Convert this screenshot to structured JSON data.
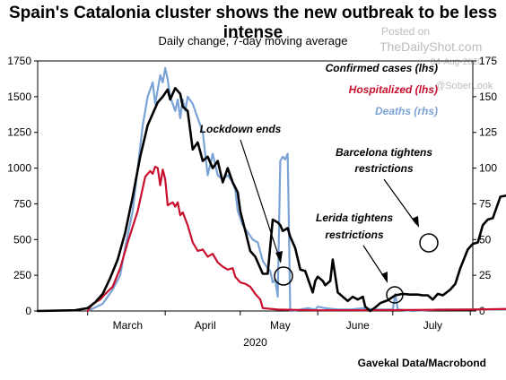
{
  "title": "Spain's Catalonia cluster shows the new outbreak to be less intense",
  "subtitle": "Daily change, 7-day moving average",
  "watermark": {
    "posted_on": "Posted on",
    "site": "TheDailyShot.com",
    "date": "04-Aug-2020",
    "handle": "@SoberLook"
  },
  "source": "Gavekal Data/Macrobond",
  "colors": {
    "confirmed": "#000000",
    "hospitalized": "#c8102e",
    "deaths": "#7ba3d6"
  },
  "chart_data": {
    "type": "line",
    "xlabel": "2020",
    "x_tick_labels": [
      "March",
      "April",
      "May",
      "June",
      "July"
    ],
    "x_tick_days": [
      76,
      107,
      137,
      168,
      198
    ],
    "x_range_day_of_year": [
      40,
      214
    ],
    "y_left": {
      "range": [
        0,
        1750
      ],
      "ticks": [
        "0",
        "250",
        "500",
        "750",
        "1000",
        "1250",
        "1500",
        "1750"
      ]
    },
    "y_right": {
      "range": [
        0,
        175
      ],
      "ticks": [
        "0",
        "25",
        "50",
        "75",
        "100",
        "125",
        "150",
        "175"
      ]
    },
    "series": [
      {
        "name": "Confirmed cases (lhs)",
        "axis": "left",
        "color": "#000000",
        "points": [
          [
            40,
            0
          ],
          [
            55,
            5
          ],
          [
            60,
            20
          ],
          [
            63,
            60
          ],
          [
            66,
            120
          ],
          [
            69,
            230
          ],
          [
            72,
            360
          ],
          [
            75,
            550
          ],
          [
            78,
            800
          ],
          [
            81,
            1080
          ],
          [
            84,
            1300
          ],
          [
            86,
            1380
          ],
          [
            88,
            1460
          ],
          [
            90,
            1500
          ],
          [
            92,
            1550
          ],
          [
            93,
            1480
          ],
          [
            95,
            1560
          ],
          [
            97,
            1520
          ],
          [
            98,
            1430
          ],
          [
            100,
            1400
          ],
          [
            102,
            1130
          ],
          [
            104,
            1180
          ],
          [
            106,
            1050
          ],
          [
            108,
            1080
          ],
          [
            110,
            1000
          ],
          [
            112,
            1050
          ],
          [
            114,
            900
          ],
          [
            116,
            1000
          ],
          [
            118,
            900
          ],
          [
            120,
            830
          ],
          [
            121,
            700
          ],
          [
            123,
            560
          ],
          [
            125,
            420
          ],
          [
            127,
            380
          ],
          [
            130,
            260
          ],
          [
            132,
            260
          ],
          [
            134,
            640
          ],
          [
            136,
            620
          ],
          [
            137,
            600
          ],
          [
            138,
            560
          ],
          [
            140,
            580
          ],
          [
            141,
            520
          ],
          [
            143,
            440
          ],
          [
            145,
            290
          ],
          [
            147,
            280
          ],
          [
            149,
            180
          ],
          [
            150,
            130
          ],
          [
            151,
            210
          ],
          [
            152,
            240
          ],
          [
            154,
            210
          ],
          [
            155,
            180
          ],
          [
            157,
            210
          ],
          [
            158,
            360
          ],
          [
            160,
            130
          ],
          [
            162,
            100
          ],
          [
            164,
            70
          ],
          [
            166,
            100
          ],
          [
            168,
            80
          ],
          [
            170,
            100
          ],
          [
            171,
            30
          ],
          [
            173,
            0
          ],
          [
            175,
            25
          ],
          [
            177,
            55
          ],
          [
            180,
            75
          ],
          [
            183,
            110
          ],
          [
            186,
            120
          ],
          [
            189,
            115
          ],
          [
            192,
            115
          ],
          [
            194,
            110
          ],
          [
            196,
            110
          ],
          [
            198,
            80
          ],
          [
            200,
            120
          ],
          [
            202,
            110
          ],
          [
            205,
            150
          ],
          [
            207,
            190
          ],
          [
            209,
            300
          ],
          [
            212,
            430
          ],
          [
            214,
            470
          ],
          [
            216,
            480
          ],
          [
            218,
            600
          ],
          [
            220,
            640
          ],
          [
            222,
            650
          ],
          [
            225,
            800
          ],
          [
            228,
            810
          ],
          [
            231,
            880
          ],
          [
            234,
            980
          ],
          [
            236,
            920
          ]
        ]
      },
      {
        "name": "Hospitalized (lhs)",
        "axis": "left",
        "color": "#c8102e",
        "points": [
          [
            60,
            0
          ],
          [
            62,
            50
          ],
          [
            65,
            80
          ],
          [
            67,
            120
          ],
          [
            70,
            170
          ],
          [
            73,
            300
          ],
          [
            76,
            480
          ],
          [
            80,
            700
          ],
          [
            83,
            940
          ],
          [
            85,
            980
          ],
          [
            86,
            960
          ],
          [
            87,
            1010
          ],
          [
            88,
            1000
          ],
          [
            89,
            880
          ],
          [
            90,
            990
          ],
          [
            91,
            920
          ],
          [
            92,
            740
          ],
          [
            94,
            760
          ],
          [
            95,
            730
          ],
          [
            96,
            760
          ],
          [
            97,
            670
          ],
          [
            98,
            690
          ],
          [
            100,
            600
          ],
          [
            102,
            480
          ],
          [
            104,
            420
          ],
          [
            106,
            430
          ],
          [
            108,
            380
          ],
          [
            110,
            400
          ],
          [
            112,
            340
          ],
          [
            114,
            310
          ],
          [
            116,
            290
          ],
          [
            118,
            300
          ],
          [
            119,
            240
          ],
          [
            121,
            200
          ],
          [
            123,
            190
          ],
          [
            125,
            170
          ],
          [
            127,
            120
          ],
          [
            129,
            80
          ],
          [
            130,
            20
          ],
          [
            136,
            10
          ],
          [
            150,
            5
          ],
          [
            170,
            5
          ],
          [
            214,
            10
          ],
          [
            230,
            15
          ],
          [
            236,
            15
          ]
        ]
      },
      {
        "name": "Deaths (rhs)",
        "axis": "right",
        "color": "#7ba3d6",
        "points": [
          [
            60,
            0
          ],
          [
            66,
            5
          ],
          [
            70,
            15
          ],
          [
            73,
            25
          ],
          [
            75,
            45
          ],
          [
            78,
            70
          ],
          [
            80,
            100
          ],
          [
            82,
            130
          ],
          [
            84,
            150
          ],
          [
            86,
            160
          ],
          [
            87,
            145
          ],
          [
            89,
            165
          ],
          [
            90,
            160
          ],
          [
            91,
            170
          ],
          [
            92,
            162
          ],
          [
            93,
            150
          ],
          [
            95,
            140
          ],
          [
            96,
            148
          ],
          [
            97,
            135
          ],
          [
            98,
            148
          ],
          [
            99,
            140
          ],
          [
            100,
            150
          ],
          [
            102,
            145
          ],
          [
            104,
            135
          ],
          [
            106,
            125
          ],
          [
            108,
            95
          ],
          [
            110,
            110
          ],
          [
            112,
            95
          ],
          [
            114,
            92
          ],
          [
            116,
            95
          ],
          [
            118,
            90
          ],
          [
            119,
            85
          ],
          [
            120,
            70
          ],
          [
            122,
            60
          ],
          [
            124,
            55
          ],
          [
            126,
            50
          ],
          [
            128,
            48
          ],
          [
            130,
            35
          ],
          [
            132,
            30
          ],
          [
            133,
            28
          ],
          [
            134,
            20
          ],
          [
            135,
            22
          ],
          [
            136,
            10
          ],
          [
            137,
            105
          ],
          [
            138,
            108
          ],
          [
            139,
            106
          ],
          [
            140,
            110
          ],
          [
            141,
            0
          ],
          [
            142,
            0
          ],
          [
            145,
            1
          ],
          [
            148,
            2
          ],
          [
            151,
            1
          ],
          [
            152,
            3
          ],
          [
            155,
            2
          ],
          [
            160,
            1
          ],
          [
            165,
            1
          ],
          [
            170,
            2
          ],
          [
            175,
            1
          ],
          [
            180,
            1
          ],
          [
            182,
            1
          ],
          [
            183,
            12
          ],
          [
            184,
            1
          ],
          [
            190,
            0
          ],
          [
            200,
            1
          ],
          [
            214,
            1
          ],
          [
            236,
            1
          ]
        ]
      }
    ],
    "legend": {
      "placement": "top-right"
    },
    "annotations": [
      {
        "text_lines": [
          "Lockdown ends"
        ]
      },
      {
        "text_lines": [
          "Lerida tightens",
          "restrictions"
        ]
      },
      {
        "text_lines": [
          "Barcelona tightens",
          "restrictions"
        ]
      }
    ],
    "grid": false
  }
}
